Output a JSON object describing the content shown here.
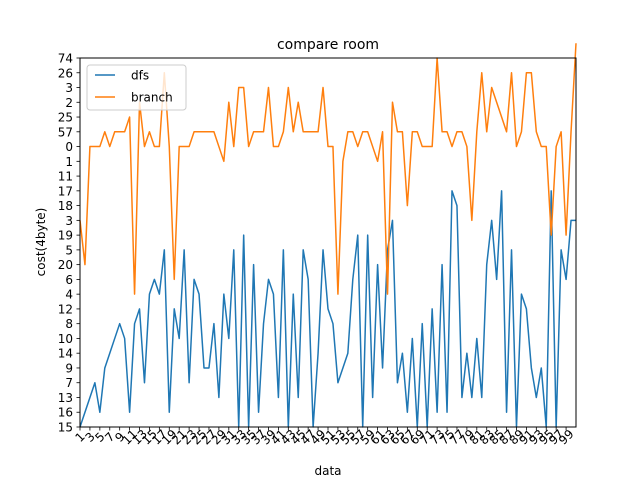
{
  "chart_data": {
    "type": "line",
    "title": "compare room",
    "xlabel": "data",
    "ylabel": "cost(4byte)",
    "y_categories_bottom_to_top": [
      "15",
      "16",
      "13",
      "7",
      "9",
      "14",
      "10",
      "8",
      "12",
      "4",
      "6",
      "20",
      "5",
      "19",
      "3",
      "18",
      "17",
      "11",
      "1",
      "0",
      "57",
      "25",
      "2",
      "3",
      "26",
      "74"
    ],
    "x_tick_labels": [
      "1",
      "3",
      "5",
      "7",
      "9",
      "11",
      "13",
      "15",
      "17",
      "19",
      "21",
      "23",
      "25",
      "27",
      "29",
      "31",
      "33",
      "35",
      "37",
      "39",
      "41",
      "43",
      "45",
      "47",
      "49",
      "51",
      "53",
      "55",
      "57",
      "59",
      "61",
      "63",
      "65",
      "67",
      "69",
      "71",
      "73",
      "75",
      "77",
      "79",
      "81",
      "83",
      "85",
      "87",
      "89",
      "91",
      "93",
      "95",
      "97",
      "99"
    ],
    "legend_position": "upper-left",
    "grid": false,
    "series": [
      {
        "name": "dfs",
        "color": "#1f77b4",
        "ylevel_by_point": [
          0,
          1,
          2,
          3,
          1,
          4,
          5,
          6,
          7,
          6,
          1,
          7,
          8,
          3,
          9,
          10,
          9,
          12,
          1,
          8,
          6,
          12,
          3,
          10,
          9,
          4,
          4,
          7,
          2,
          9,
          6,
          12,
          0,
          13,
          0,
          11,
          1,
          7,
          10,
          9,
          2,
          12,
          0,
          9,
          2,
          12,
          10,
          0,
          5,
          12,
          8,
          7,
          3,
          4,
          5,
          10,
          13,
          0,
          13,
          2,
          11,
          4,
          12,
          14,
          3,
          5,
          1,
          6,
          0,
          7,
          0,
          8,
          1,
          11,
          1,
          16,
          15,
          2,
          5,
          2,
          6,
          2,
          11,
          14,
          10,
          16,
          1,
          12,
          0,
          9,
          8,
          4,
          2,
          4,
          0,
          16,
          0,
          12,
          10,
          14,
          14
        ]
      },
      {
        "name": "branch",
        "color": "#ff7f0e",
        "ylevel_by_point": [
          14,
          11,
          19,
          19,
          19,
          20,
          19,
          20,
          20,
          20,
          21,
          9,
          22,
          19,
          20,
          19,
          19,
          24,
          19,
          10,
          19,
          19,
          19,
          20,
          20,
          20,
          20,
          20,
          19,
          18,
          22,
          19,
          23,
          23,
          19,
          20,
          20,
          20,
          23,
          19,
          19,
          20,
          23,
          20,
          22,
          20,
          20,
          20,
          20,
          23,
          19,
          19,
          9,
          18,
          20,
          20,
          19,
          20,
          20,
          19,
          18,
          20,
          9,
          22,
          20,
          20,
          15,
          20,
          20,
          19,
          19,
          19,
          25,
          20,
          20,
          19,
          20,
          20,
          19,
          14,
          20,
          24,
          20,
          23,
          22,
          21,
          20,
          24,
          19,
          20,
          24,
          24,
          20,
          19,
          19,
          13,
          19,
          20,
          13,
          20,
          26
        ]
      }
    ]
  }
}
